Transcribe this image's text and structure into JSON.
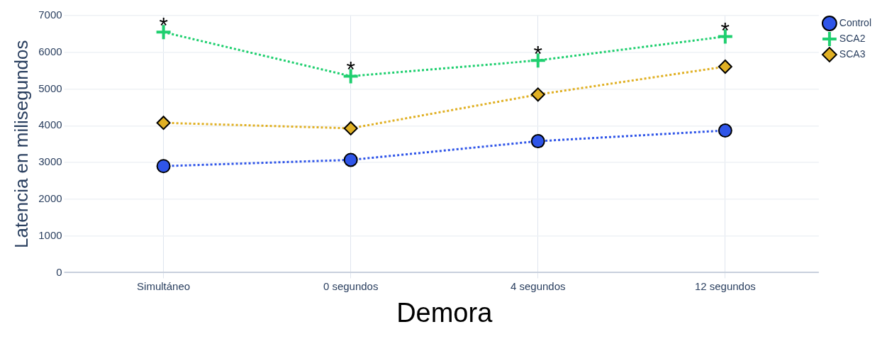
{
  "chart_data": {
    "type": "line",
    "xlabel": "Demora",
    "ylabel": "Latencia en milisegundos",
    "categories": [
      "Simultáneo",
      "0 segundos",
      "4 segundos",
      "12 segundos"
    ],
    "series": [
      {
        "name": "Control",
        "color": "#2f55e8",
        "marker": "circle",
        "values": [
          2900,
          3070,
          3580,
          3870
        ]
      },
      {
        "name": "SCA2",
        "color": "#1fcf6f",
        "marker": "cross",
        "values": [
          6550,
          5350,
          5780,
          6430
        ]
      },
      {
        "name": "SCA3",
        "color": "#e0b024",
        "marker": "diamond",
        "values": [
          4080,
          3930,
          4850,
          5610
        ]
      }
    ],
    "ylim": [
      0,
      7000
    ],
    "yticks": [
      0,
      1000,
      2000,
      3000,
      4000,
      5000,
      6000,
      7000
    ],
    "grid": true,
    "legend": "top right",
    "line_style": "dotted",
    "annotations": [
      {
        "text": "*",
        "x": "Simultáneo",
        "y": 6550
      },
      {
        "text": "*",
        "x": "0 segundos",
        "y": 5350
      },
      {
        "text": "*",
        "x": "4 segundos",
        "y": 5780
      },
      {
        "text": "*",
        "x": "12 segundos",
        "y": 6430
      }
    ]
  }
}
